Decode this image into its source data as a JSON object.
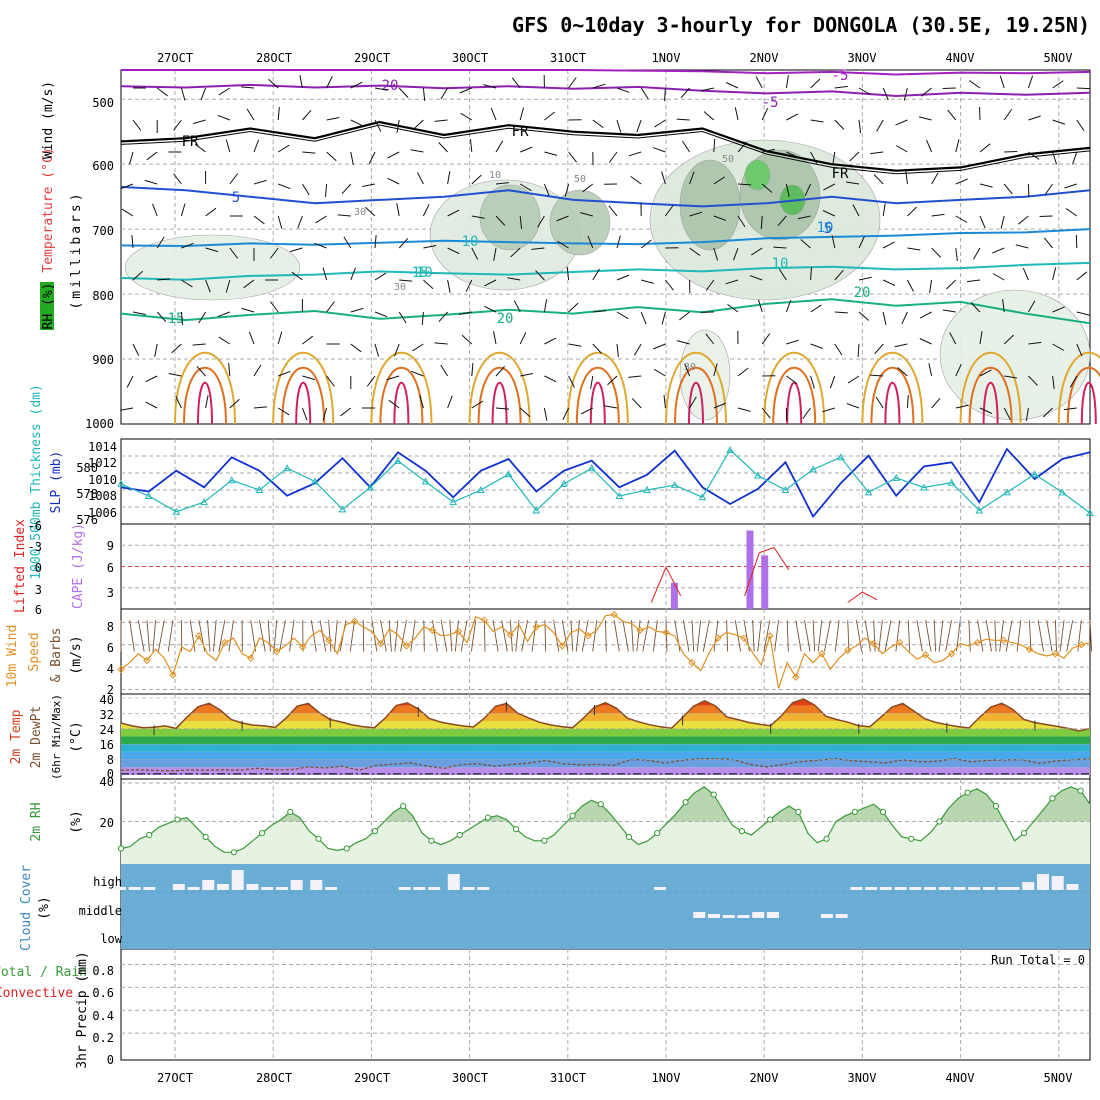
{
  "header": {
    "title": "GFS 0~10day 3-hourly for DONGOLA (30.5E, 19.25N)"
  },
  "chart_data": [
    {
      "type": "heatmap",
      "panel": "upper-air",
      "title": "Wind (m/s), Temperature (°C), RH (%)",
      "label_wind": "Wind (m/s)",
      "label_temp": "Temperature (°C)",
      "label_rh": "RH (%)",
      "ylabel": "(millibars)",
      "y_ticks": [
        "500",
        "600",
        "700",
        "800",
        "900",
        "1000"
      ],
      "ylim": [
        1000,
        455
      ],
      "dates": [
        "27OCT",
        "28OCT",
        "29OCT",
        "30OCT",
        "31OCT",
        "1NOV",
        "2NOV",
        "3NOV",
        "4NOV",
        "5NOV"
      ],
      "isotherm_labels": [
        "5",
        "5",
        "FR",
        "FR",
        "FR",
        "10",
        "10",
        "10",
        "15",
        "15",
        "20",
        "20",
        "20",
        "-5",
        "-5",
        "-10"
      ],
      "rh_labels": [
        "30",
        "50",
        "50",
        "30",
        "30",
        "10"
      ],
      "isotherms": [
        {
          "name": "-10",
          "color": "#a020c0",
          "values": [
            455,
            455,
            455,
            455,
            455,
            455,
            455,
            455,
            456,
            457,
            460,
            458,
            462,
            459,
            460,
            458
          ]
        },
        {
          "name": "-5",
          "color": "#8a20b0",
          "values": [
            480,
            482,
            478,
            482,
            479,
            483,
            480,
            484,
            481,
            487,
            491,
            488,
            495,
            490,
            493,
            490
          ]
        },
        {
          "name": "FR",
          "color": "#000000",
          "values": [
            565,
            560,
            545,
            560,
            535,
            555,
            540,
            550,
            555,
            545,
            580,
            600,
            610,
            605,
            585,
            575
          ]
        },
        {
          "name": "5",
          "color": "#2050d0",
          "values": [
            635,
            640,
            650,
            660,
            655,
            650,
            640,
            655,
            660,
            665,
            660,
            650,
            660,
            655,
            650,
            640
          ]
        },
        {
          "name": "10",
          "color": "#1a8ad8",
          "values": [
            725,
            726,
            722,
            724,
            721,
            718,
            720,
            722,
            723,
            720,
            714,
            712,
            710,
            706,
            705,
            700
          ]
        },
        {
          "name": "15",
          "color": "#20b8b8",
          "values": [
            775,
            778,
            772,
            770,
            765,
            768,
            770,
            766,
            762,
            765,
            760,
            758,
            762,
            760,
            755,
            752
          ]
        },
        {
          "name": "20",
          "color": "#18b080",
          "values": [
            830,
            840,
            832,
            826,
            838,
            832,
            824,
            830,
            820,
            828,
            815,
            808,
            818,
            812,
            830,
            845
          ]
        }
      ]
    },
    {
      "type": "line",
      "panel": "pressure-thickness",
      "label_thickness": "1000-500mb Thickness (dm)",
      "label_slp": "SLP (mb)",
      "left_ticks": [
        "580",
        "578",
        "576"
      ],
      "right_ticks": [
        "1014",
        "1012",
        "1010",
        "1008",
        "1006"
      ],
      "series": [
        {
          "name": "SLP (mb)",
          "color": "#1030d0",
          "values": [
            1009,
            1008.5,
            1011,
            1009,
            1012.6,
            1011,
            1008,
            1009.5,
            1012.5,
            1009,
            1013.2,
            1011,
            1007.8,
            1011,
            1012.4,
            1008.5,
            1011,
            1012.2,
            1009,
            1010.5,
            1013.4,
            1009,
            1007,
            1008.8,
            1012,
            1005.5,
            1009.5,
            1012.8,
            1008,
            1011.5,
            1012,
            1007.2,
            1013.6,
            1010,
            1012.4,
            1013.2
          ]
        },
        {
          "name": "1000-500mb Thickness (dm)",
          "color": "#20b8b8",
          "values": [
            578.5,
            577.5,
            576.2,
            577,
            578.8,
            578,
            579.8,
            578.7,
            576.4,
            578.2,
            580.4,
            578.7,
            577,
            578,
            579.3,
            576.3,
            578.5,
            579.8,
            577.5,
            578,
            578.4,
            577.4,
            581.3,
            579.2,
            578,
            579.7,
            580.7,
            577.8,
            579,
            578.2,
            578.6,
            576.3,
            577.8,
            579.3,
            577.8,
            576.1
          ]
        }
      ]
    },
    {
      "type": "bar",
      "panel": "instability",
      "label_li": "Lifted Index",
      "label_cape": "CAPE (J/kg)",
      "left_ticks": [
        "-6",
        "-3",
        "0",
        "3",
        "6"
      ],
      "right_ticks": [
        "9",
        "6",
        "3"
      ],
      "cape_series": {
        "name": "CAPE (J/kg)",
        "color": "#b070e8",
        "x_days": [
          5.58,
          6.35,
          6.5
        ],
        "values": [
          4,
          12,
          8.2
        ]
      },
      "li_series": {
        "name": "Lifted Index",
        "color": "#e02020",
        "x_days": [
          5.35,
          5.5,
          5.65,
          6.3,
          6.45,
          6.6,
          6.75,
          7.35,
          7.5,
          7.65
        ],
        "values": [
          6,
          3.3,
          5.5,
          5.5,
          2.2,
          1.8,
          3.5,
          6,
          5.2,
          5.8
        ]
      }
    },
    {
      "type": "line",
      "panel": "wind10m",
      "label_wind": "10m Wind",
      "label_speed": "Speed",
      "label_barbs": "& Barbs",
      "ylabel": "(m/s)",
      "y_ticks": [
        "8",
        "6",
        "4",
        "2"
      ],
      "series": [
        {
          "name": "10m wind speed",
          "color": "#e09020",
          "values": [
            3.8,
            4.4,
            5.2,
            4.6,
            5.6,
            4.8,
            3.3,
            5.8,
            5.4,
            6.8,
            5.2,
            4.6,
            6.2,
            6.6,
            5.2,
            4.8,
            6.6,
            6.2,
            5.4,
            5.9,
            6.6,
            5.8,
            6.8,
            7.3,
            6.4,
            5.2,
            7.8,
            8.1,
            7.6,
            7.2,
            6.1,
            7.4,
            6.9,
            5.9,
            6.6,
            7.6,
            7.3,
            6.8,
            6.9,
            7.2,
            6.2,
            8.5,
            8.2,
            7.2,
            7.6,
            6.9,
            7.8,
            6.3,
            7.6,
            7.8,
            7.1,
            5.9,
            7.1,
            7.4,
            6.8,
            7.3,
            8.6,
            8.7,
            8.1,
            7.9,
            7.3,
            7.6,
            7.2,
            7.1,
            6.8,
            5.2,
            4.4,
            3.7,
            5.3,
            6.6,
            7.1,
            6.9,
            6.6,
            5.3,
            4.2,
            6.8,
            2.1,
            4.4,
            3.1,
            5.2,
            4.4,
            5.2,
            3.8,
            4.8,
            5.5,
            5.9,
            6.6,
            6.1,
            5.2,
            5.8,
            6.2,
            5.4,
            4.7,
            5.1,
            4.4,
            4.6,
            5.2,
            6.1,
            5.9,
            6.2,
            6.5,
            6.4,
            6.4,
            6.2,
            6.0,
            5.6,
            5.2,
            5.0,
            5.2,
            4.8,
            5.7,
            6.0,
            6.2
          ]
        }
      ]
    },
    {
      "type": "area",
      "panel": "temperature",
      "label_temp": "2m Temp",
      "label_dew": "2m DewPt",
      "label_minmax": "(6hr Min/Max)",
      "ylabel": "(°C)",
      "y_ticks": [
        "40",
        "32",
        "24",
        "16",
        "8",
        "0"
      ],
      "series": [
        {
          "name": "2m Temp",
          "color": "#8a4a20",
          "values": [
            27.0,
            25.5,
            24.5,
            24.8,
            25.5,
            24.2,
            30.1,
            35.4,
            37.2,
            33.8,
            28.8,
            27.0,
            25.9,
            25.5,
            24.7,
            29.6,
            35.7,
            37.1,
            32.4,
            28.8,
            27.5,
            26.0,
            25.0,
            24.5,
            29.6,
            36.0,
            37.4,
            34.3,
            29.3,
            27.5,
            26.4,
            25.5,
            24.9,
            29.5,
            35.6,
            37.1,
            32.2,
            29.7,
            27.4,
            26.0,
            25.1,
            24.5,
            29.6,
            35.3,
            37.5,
            34.6,
            29.5,
            27.6,
            26.1,
            25.0,
            24.3,
            29.9,
            35.7,
            38.5,
            35.8,
            30.2,
            28.8,
            27.3,
            26.3,
            25.6,
            30.9,
            37.6,
            39.4,
            36.3,
            30.5,
            28.8,
            27.4,
            25.6,
            25.0,
            30.0,
            35.2,
            37.1,
            33.2,
            29.2,
            27.3,
            26.1,
            25.1,
            24.4,
            30.1,
            35.3,
            37.2,
            34.0,
            28.8,
            27.2,
            26.2,
            25.2,
            24.2,
            22.9,
            24.2
          ]
        },
        {
          "name": "2m DewPt",
          "color": "#606060",
          "values": [
            0.5,
            0.7,
            0.4,
            0.2,
            0.6,
            0.5,
            0.7,
            0.5,
            1.5,
            0.6,
            0.8,
            2.2,
            1.7,
            2.5,
            0.5,
            3.0,
            3.6,
            4.3,
            2.6,
            1.5,
            3.4,
            3.8,
            2.6,
            3.5,
            4.2,
            5.5,
            3.8,
            3.3,
            3.5,
            3.0,
            6.1,
            5.7,
            4.1,
            5.7,
            6.4,
            6.5,
            6.0,
            3.5,
            2.2,
            3.5,
            4.9,
            5.7,
            6.5,
            5.4,
            4.8,
            4.3,
            5.9,
            4.8,
            5.1,
            6.5,
            4.8,
            5.6,
            5.8,
            6.0,
            4.0,
            5.2,
            6.0,
            6.2
          ]
        }
      ]
    },
    {
      "type": "area",
      "panel": "rh2m",
      "label": "2m RH",
      "ylabel": "(%)",
      "y_ticks": [
        "40",
        "20"
      ],
      "series": [
        {
          "name": "2m RH",
          "color": "#3a9a3a",
          "values": [
            6,
            7,
            11,
            13,
            17,
            19,
            21,
            22,
            17,
            12,
            7,
            4,
            4,
            6,
            10,
            14,
            18,
            21,
            25,
            22,
            15,
            11,
            6,
            5,
            6,
            9,
            11,
            15,
            20,
            25,
            28,
            23,
            14,
            10,
            8,
            10,
            13,
            16,
            19,
            22,
            23,
            21,
            16,
            12,
            10,
            10,
            13,
            18,
            23,
            28,
            31,
            29,
            24,
            18,
            12,
            8,
            10,
            14,
            19,
            24,
            30,
            35,
            38,
            34,
            26,
            18,
            15,
            13,
            17,
            21,
            25,
            28,
            25,
            14,
            9,
            11,
            20,
            23,
            25,
            27,
            29,
            25,
            18,
            12,
            11,
            10,
            14,
            20,
            27,
            32,
            35,
            37,
            34,
            28,
            19,
            10,
            14,
            20,
            26,
            32,
            36,
            38,
            36,
            29
          ]
        }
      ]
    },
    {
      "type": "bar",
      "panel": "cloud-cover",
      "label": "Cloud Cover",
      "ylabel": "(%)",
      "y_ticks": [
        "high",
        "middle",
        "low"
      ],
      "background": "#6aaed6",
      "bar_color": "#f4f2f8",
      "high_values": [
        3,
        3,
        3,
        6,
        3,
        10,
        6,
        20,
        6,
        3,
        3,
        10,
        10,
        3,
        3,
        3,
        3,
        16,
        3,
        3,
        3,
        3,
        3,
        3,
        3,
        3,
        3,
        3,
        3,
        3,
        3,
        3,
        3,
        8,
        16,
        14,
        6
      ],
      "high_x_days": [
        0.0,
        0.15,
        0.3,
        0.6,
        0.75,
        0.9,
        1.05,
        1.2,
        1.35,
        1.5,
        1.65,
        1.8,
        2.0,
        2.15,
        2.9,
        3.05,
        3.2,
        3.4,
        3.55,
        3.7,
        5.5,
        7.5,
        7.65,
        7.8,
        7.95,
        8.1,
        8.25,
        8.4,
        8.55,
        8.7,
        8.85,
        9.0,
        9.1,
        9.25,
        9.4,
        9.55,
        9.7
      ],
      "mid_values": [
        6,
        4,
        3,
        3,
        6,
        6,
        4,
        4
      ],
      "mid_x_days": [
        5.9,
        6.05,
        6.2,
        6.35,
        6.5,
        6.65,
        7.2,
        7.35
      ]
    },
    {
      "type": "bar",
      "panel": "precip",
      "label_total": "Total / Rain",
      "label_conv": "Convective",
      "ylabel": "3hr Precip (mm)",
      "y_ticks": [
        "0.8",
        "0.6",
        "0.4",
        "0.2",
        "0"
      ],
      "run_total": "Run Total = 0",
      "values": []
    }
  ]
}
